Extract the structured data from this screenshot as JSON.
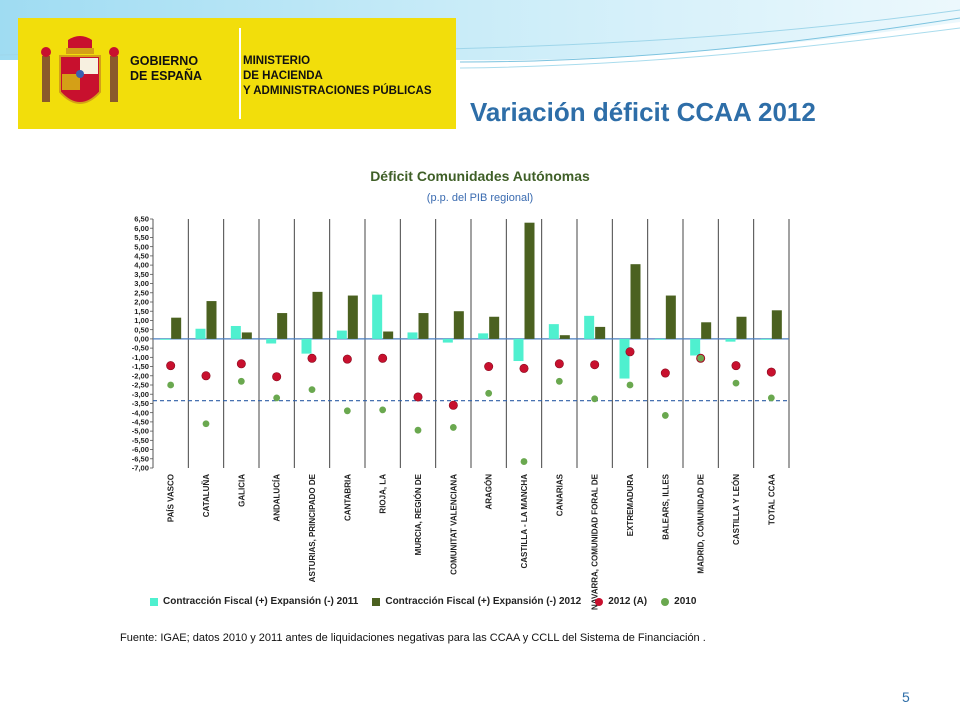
{
  "logo": {
    "gobierno_line1": "GOBIERNO",
    "gobierno_line2": "DE ESPAÑA",
    "ministerio_line1": "MINISTERIO",
    "ministerio_line2": "DE HACIENDA",
    "ministerio_line3": "Y ADMINISTRACIONES PÚBLICAS",
    "color": "#f2de0b"
  },
  "slide": {
    "title": "Variación déficit CCAA 2012",
    "source": "Fuente: IGAE; datos 2010 y 2011  antes de liquidaciones negativas para las CCAA y CCLL del Sistema de Financiación .",
    "page_number": "5"
  },
  "chart_data": {
    "type": "bar",
    "title": "Déficit Comunidades Autónomas",
    "subtitle": "(p.p.  del PIB regional)",
    "ylim": [
      -7.0,
      6.5
    ],
    "ytick_step": 0.5,
    "grid": false,
    "legend_position": "bottom",
    "reference_line": -3.35,
    "categories": [
      "PAÍS VASCO",
      "CATALUÑA",
      "GALICIA",
      "ANDALUCÍA",
      "ASTURIAS, PRINCIPADO DE",
      "CANTABRIA",
      "RIOJA, LA",
      "MURCIA, REGIÓN DE",
      "COMUNITAT VALENCIANA",
      "ARAGÓN",
      "CASTILLA - LA MANCHA",
      "CANARIAS",
      "NAVARRA, COMUNIDAD FORAL DE",
      "EXTREMADURA",
      "BALEARS, ILLES",
      "MADRID, COMUNIDAD DE",
      "CASTILLA Y LEÓN",
      "TOTAL CCAA"
    ],
    "series": [
      {
        "name": "Contracción Fiscal (+) Expansión (-) 2011",
        "kind": "bar",
        "color": "#4ff0cf",
        "values": [
          -0.05,
          0.55,
          0.7,
          -0.25,
          -0.8,
          0.45,
          2.4,
          0.35,
          -0.2,
          0.3,
          -1.2,
          0.8,
          1.25,
          -2.15,
          -0.05,
          -0.9,
          -0.15,
          -0.05
        ]
      },
      {
        "name": "Contracción Fiscal (+) Expansión (-) 2012",
        "kind": "bar",
        "color": "#4b6120",
        "values": [
          1.15,
          2.05,
          0.35,
          1.4,
          2.55,
          2.35,
          0.4,
          1.4,
          1.5,
          1.2,
          6.3,
          0.2,
          0.65,
          4.05,
          2.35,
          0.9,
          1.2,
          1.55
        ]
      },
      {
        "name": "2012 (A)",
        "kind": "point",
        "color": "#c8102e",
        "values": [
          -1.45,
          -2.0,
          -1.35,
          -2.05,
          -1.05,
          -1.1,
          -1.05,
          -3.15,
          -3.6,
          -1.5,
          -1.6,
          -1.35,
          -1.4,
          -0.7,
          -1.85,
          -1.05,
          -1.45,
          -1.8
        ]
      },
      {
        "name": "2010",
        "kind": "point",
        "color": "#6aa84f",
        "values": [
          -2.5,
          -4.6,
          -2.3,
          -3.2,
          -2.75,
          -3.9,
          -3.85,
          -4.95,
          -4.8,
          -2.95,
          -6.65,
          -2.3,
          -3.25,
          -2.5,
          -4.15,
          -1.05,
          -2.4,
          -3.2
        ]
      }
    ]
  }
}
